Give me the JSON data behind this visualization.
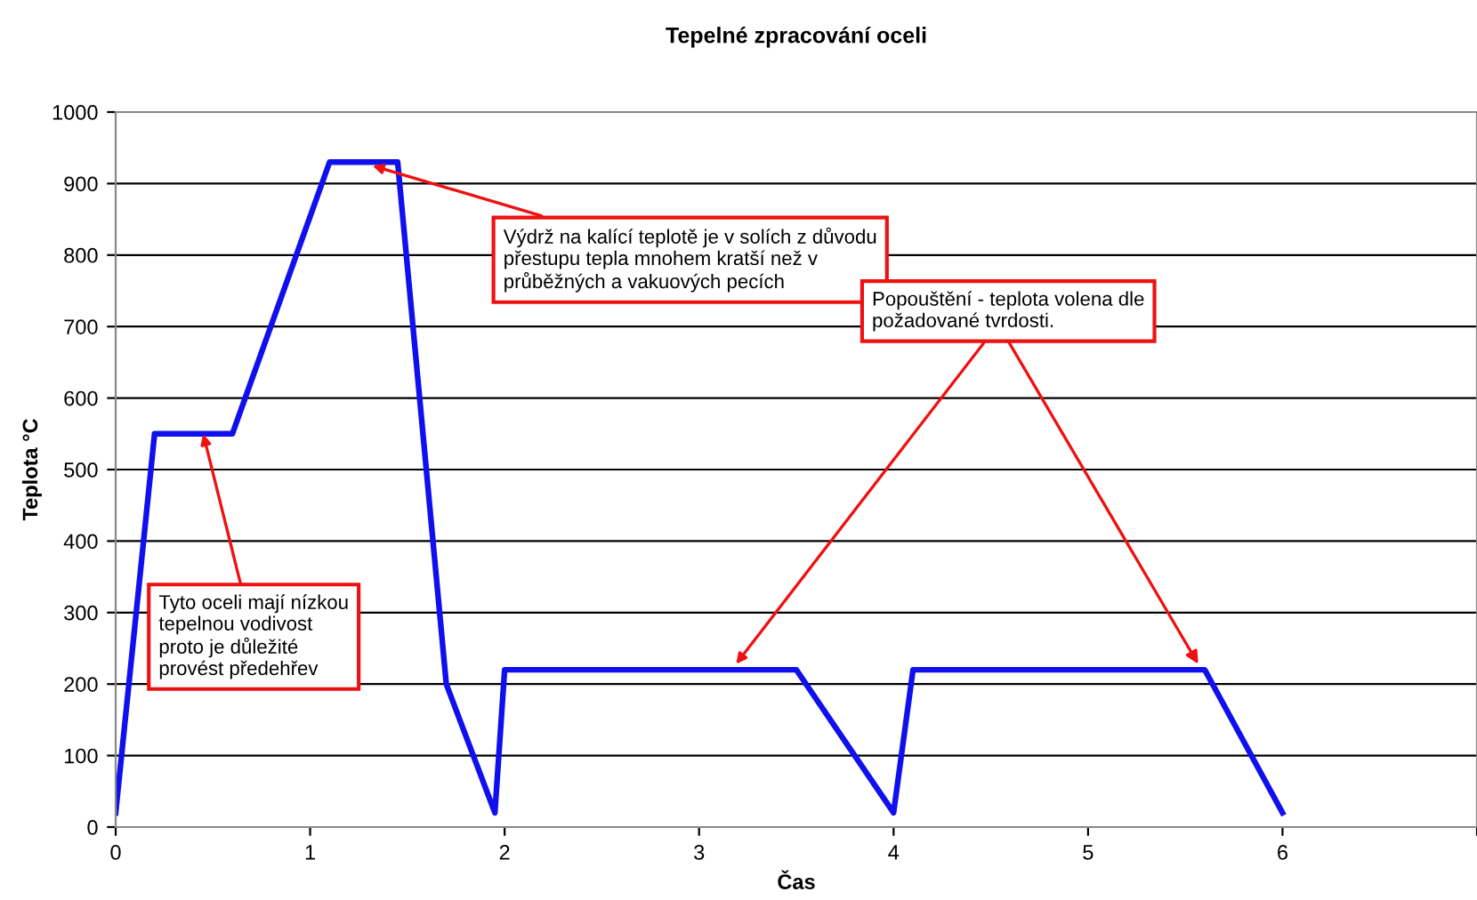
{
  "chart_data": {
    "type": "line",
    "title": "Tepelné zpracování oceli",
    "xlabel": "Čas",
    "ylabel": "Teplota °C",
    "series": [
      {
        "color": "#1010ee",
        "x": [
          0,
          0.2,
          0.6,
          1.1,
          1.45,
          1.7,
          1.95,
          2,
          3.5,
          4,
          4.1,
          5.6,
          6
        ],
        "values": [
          20,
          550,
          550,
          930,
          930,
          200,
          20,
          220,
          220,
          20,
          220,
          220,
          20
        ]
      }
    ],
    "xlim": [
      0,
      7
    ],
    "xticks": [
      0,
      1,
      2,
      3,
      4,
      5,
      6,
      {
        "value": 7,
        "label": null
      }
    ],
    "ylim": [
      0,
      1000
    ],
    "yticks": [
      0,
      100,
      200,
      300,
      400,
      500,
      600,
      700,
      800,
      900,
      1000
    ],
    "grid": "y",
    "legend": false,
    "marker": "none",
    "line_style": "solid",
    "annotations": [
      {
        "text": "Tyto oceli mají nízkou\ntepelnou vodivost\nproto je důležité\nprovést předehřev",
        "x": 0.45,
        "y": 550
      },
      {
        "text": "Výdrž na kalící teplotě je v solích z důvodu\npřestupu tepla mnohem kratší než v\nprůběžných a vakuových pecích",
        "x": 1.32,
        "y": 925
      },
      {
        "text": "Popouštění - teplota volena dle\npožadované tvrdosti.",
        "x": 3.19,
        "y": 228
      }
    ]
  }
}
